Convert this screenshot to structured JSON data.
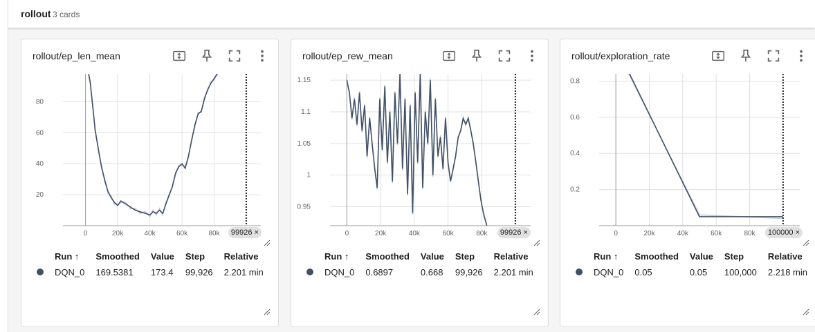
{
  "group": {
    "title": "rollout",
    "count": "3 cards"
  },
  "legend_headers": {
    "run": "Run ↑",
    "smoothed": "Smoothed",
    "value": "Value",
    "step": "Step",
    "relative": "Relative"
  },
  "colors": {
    "line": "#425066",
    "raw": "#c5cad6",
    "grid": "#e0e0e0",
    "marker": "#425066"
  },
  "icons": [
    "fit-domain-icon",
    "pin-icon",
    "fullscreen-icon",
    "more-vert-icon"
  ],
  "cards": [
    {
      "title": "rollout/ep_len_mean",
      "step_chip": "99926 ×",
      "legend": {
        "run": "DQN_0",
        "smoothed": "169.5381",
        "value": "173.4",
        "step": "99,926",
        "relative": "2.201 min"
      },
      "chart_data": {
        "type": "line",
        "x_ticks": [
          "0",
          "20k",
          "40k",
          "60k",
          "80k"
        ],
        "y_ticks": [
          "20",
          "40",
          "60",
          "80"
        ],
        "xlim": [
          -14000,
          109000
        ],
        "ylim": [
          0,
          98
        ],
        "step_marker": 99926,
        "series": [
          {
            "x": [
              2000,
              3000,
              4000,
              5000,
              6000,
              8000,
              10000,
              12000,
              14000,
              16000,
              18000,
              20000,
              22000,
              25000,
              28000,
              31000,
              34000,
              37000,
              40000,
              42000,
              44000,
              46000,
              48000,
              50000,
              52000,
              54000,
              56000,
              58000,
              60000,
              62000,
              64000,
              66000,
              68000,
              70000,
              72000,
              74000,
              76000,
              78000,
              80000,
              82000
            ],
            "y": [
              98,
              92,
              82,
              72,
              62,
              49,
              38,
              29,
              22,
              18,
              15,
              13,
              16,
              14,
              12,
              10,
              9,
              8,
              7,
              9,
              8,
              10,
              8,
              14,
              20,
              25,
              34,
              38,
              40,
              37,
              45,
              55,
              65,
              72,
              74,
              82,
              88,
              92,
              95,
              98
            ]
          }
        ]
      }
    },
    {
      "title": "rollout/ep_rew_mean",
      "step_chip": "99926 ×",
      "legend": {
        "run": "DQN_0",
        "smoothed": "0.6897",
        "value": "0.668",
        "step": "99,926",
        "relative": "2.201 min"
      },
      "chart_data": {
        "type": "line",
        "x_ticks": [
          "0",
          "20k",
          "40k",
          "60k",
          "80k"
        ],
        "y_ticks": [
          "0.95",
          "1",
          "1.05",
          "1.1",
          "1.15"
        ],
        "xlim": [
          -10000,
          109000
        ],
        "ylim": [
          0.92,
          1.16
        ],
        "step_marker": 99926,
        "series": [
          {
            "x": [
              0,
              1500,
              3000,
              4500,
              6000,
              7500,
              9000,
              10500,
              12000,
              13500,
              15000,
              16500,
              18000,
              19500,
              21000,
              22500,
              24000,
              25500,
              27000,
              28500,
              30000,
              31500,
              33000,
              34500,
              36000,
              37500,
              39000,
              40500,
              42000,
              43500,
              45000,
              46500,
              48000,
              49500,
              51000,
              52500,
              54000,
              55500,
              57000,
              58500,
              60000,
              61500,
              63000,
              64500,
              66000,
              67500,
              69000,
              70500,
              72000,
              73500,
              75000,
              76500,
              78000,
              79500,
              81000,
              83000
            ],
            "y": [
              1.15,
              1.13,
              1.09,
              1.12,
              1.08,
              1.13,
              1.07,
              1.11,
              1.03,
              1.09,
              1.05,
              1.01,
              0.98,
              1.12,
              1.04,
              1.14,
              1.02,
              1.1,
              0.99,
              1.13,
              1.05,
              1.16,
              1.01,
              1.12,
              0.97,
              1.11,
              0.94,
              1.13,
              1.02,
              1.16,
              0.98,
              1.1,
              1.05,
              1.15,
              1.0,
              1.12,
              1.03,
              1.06,
              1.01,
              1.09,
              1.02,
              0.99,
              1.01,
              1.03,
              1.06,
              1.07,
              1.09,
              1.08,
              1.09,
              1.07,
              1.05,
              1.02,
              0.99,
              0.96,
              0.94,
              0.92
            ]
          }
        ]
      }
    },
    {
      "title": "rollout/exploration_rate",
      "step_chip": "100000 ×",
      "legend": {
        "run": "DQN_0",
        "smoothed": "0.05",
        "value": "0.05",
        "step": "100,000",
        "relative": "2.218 min"
      },
      "chart_data": {
        "type": "line",
        "x_ticks": [
          "0",
          "20k",
          "40k",
          "60k",
          "80k"
        ],
        "y_ticks": [
          "0.2",
          "0.4",
          "0.6",
          "0.8"
        ],
        "xlim": [
          -10000,
          110000
        ],
        "ylim": [
          0,
          0.84
        ],
        "step_marker": 100000,
        "series": [
          {
            "x": [
              5000,
              50000,
              100000
            ],
            "y": [
              0.9,
              0.05,
              0.05
            ]
          }
        ]
      }
    }
  ]
}
